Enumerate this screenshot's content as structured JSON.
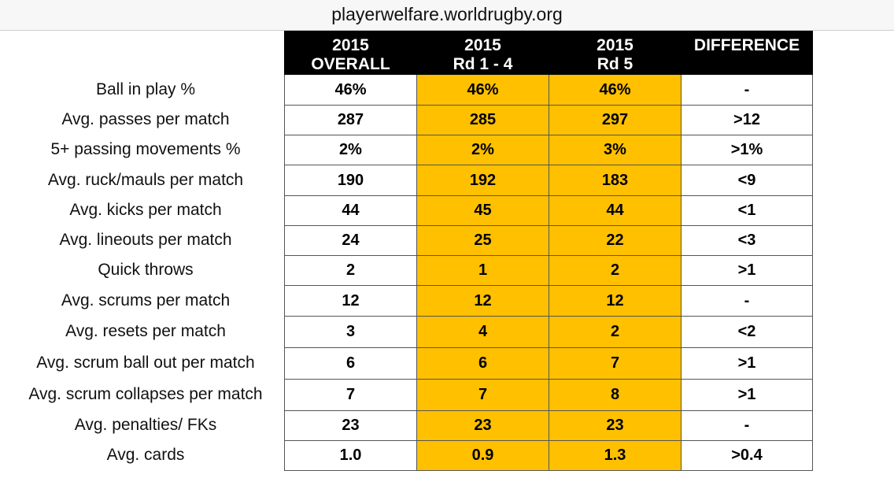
{
  "source": "playerwelfare.worldrugby.org",
  "chart_data": {
    "type": "table",
    "columns": [
      "2015\nOVERALL",
      "2015\nRd 1 - 4",
      "2015\nRd 5",
      "DIFFERENCE"
    ],
    "highlight_color": "#ffc000",
    "header_color": "#000000",
    "rows": [
      {
        "label": "Ball in play %",
        "values": [
          "46%",
          "46%",
          "46%",
          "-"
        ]
      },
      {
        "label": "Avg. passes per match",
        "values": [
          "287",
          "285",
          "297",
          ">12"
        ]
      },
      {
        "label": "5+ passing movements %",
        "values": [
          "2%",
          "2%",
          "3%",
          ">1%"
        ]
      },
      {
        "label": "Avg. ruck/mauls per match",
        "values": [
          "190",
          "192",
          "183",
          "<9"
        ]
      },
      {
        "label": "Avg. kicks per match",
        "values": [
          "44",
          "45",
          "44",
          "<1"
        ]
      },
      {
        "label": "Avg. lineouts per match",
        "values": [
          "24",
          "25",
          "22",
          "<3"
        ]
      },
      {
        "label": "Quick throws",
        "values": [
          "2",
          "1",
          "2",
          ">1"
        ]
      },
      {
        "label": "Avg. scrums per match",
        "values": [
          "12",
          "12",
          "12",
          "-"
        ]
      },
      {
        "label": "Avg. resets per match",
        "values": [
          "3",
          "4",
          "2",
          "<2"
        ]
      },
      {
        "label": "Avg. scrum ball out per match",
        "values": [
          "6",
          "6",
          "7",
          ">1"
        ]
      },
      {
        "label": "Avg. scrum collapses per match",
        "values": [
          "7",
          "7",
          "8",
          ">1"
        ]
      },
      {
        "label": "Avg. penalties/ FKs",
        "values": [
          "23",
          "23",
          "23",
          "-"
        ]
      },
      {
        "label": "Avg. cards",
        "values": [
          "1.0",
          "0.9",
          "1.3",
          ">0.4"
        ]
      }
    ]
  }
}
